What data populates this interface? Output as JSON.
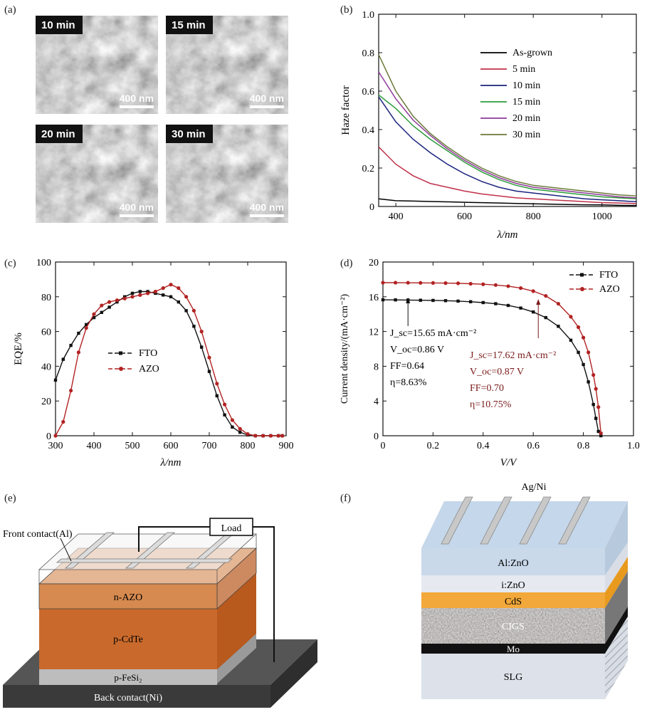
{
  "panels": {
    "a": "(a)",
    "b": "(b)",
    "c": "(c)",
    "d": "(d)",
    "e": "(e)",
    "f": "(f)"
  },
  "sem_images": [
    {
      "time": "10 min",
      "scale": "400 nm"
    },
    {
      "time": "15 min",
      "scale": "400 nm"
    },
    {
      "time": "20 min",
      "scale": "400 nm"
    },
    {
      "time": "30 min",
      "scale": "400 nm"
    }
  ],
  "colors": {
    "as_grown": "#000000",
    "min5": "#c0304a",
    "min10": "#1a237e",
    "min15": "#2e9b3a",
    "min20": "#8e3a99",
    "min30": "#6b7a3a",
    "fto": "#111111",
    "azo": "#b22222",
    "dev_red": "#7a1a1a"
  },
  "chart_data": [
    {
      "panel": "b",
      "type": "line",
      "xlabel": "λ/nm",
      "ylabel": "Haze factor",
      "xlim": [
        350,
        1100
      ],
      "ylim": [
        0,
        1.0
      ],
      "xticks": [
        "400",
        "600",
        "800",
        "1000"
      ],
      "yticks": [
        "0",
        "0.2",
        "0.4",
        "0.6",
        "0.8",
        "1.0"
      ],
      "x": [
        350,
        400,
        450,
        500,
        550,
        600,
        650,
        700,
        750,
        800,
        850,
        900,
        950,
        1000,
        1050,
        1100
      ],
      "series": [
        {
          "name": "As-grown",
          "values": [
            0.04,
            0.03,
            0.028,
            0.026,
            0.024,
            0.022,
            0.02,
            0.018,
            0.016,
            0.014,
            0.012,
            0.01,
            0.009,
            0.008,
            0.006,
            0.005
          ]
        },
        {
          "name": "5 min",
          "values": [
            0.31,
            0.22,
            0.16,
            0.12,
            0.1,
            0.08,
            0.065,
            0.055,
            0.045,
            0.04,
            0.035,
            0.03,
            0.025,
            0.02,
            0.018,
            0.015
          ]
        },
        {
          "name": "10 min",
          "values": [
            0.57,
            0.44,
            0.35,
            0.28,
            0.22,
            0.17,
            0.13,
            0.1,
            0.08,
            0.07,
            0.06,
            0.05,
            0.04,
            0.035,
            0.03,
            0.025
          ]
        },
        {
          "name": "15 min",
          "values": [
            0.58,
            0.51,
            0.42,
            0.35,
            0.29,
            0.23,
            0.18,
            0.14,
            0.11,
            0.09,
            0.08,
            0.07,
            0.06,
            0.05,
            0.045,
            0.04
          ]
        },
        {
          "name": "20 min",
          "values": [
            0.7,
            0.56,
            0.45,
            0.37,
            0.3,
            0.24,
            0.19,
            0.15,
            0.12,
            0.1,
            0.09,
            0.08,
            0.07,
            0.06,
            0.05,
            0.045
          ]
        },
        {
          "name": "30 min",
          "values": [
            0.79,
            0.6,
            0.47,
            0.38,
            0.31,
            0.25,
            0.2,
            0.16,
            0.13,
            0.11,
            0.1,
            0.09,
            0.08,
            0.07,
            0.06,
            0.055
          ]
        }
      ],
      "legend": "right-center"
    },
    {
      "panel": "c",
      "type": "line",
      "xlabel": "λ/nm",
      "ylabel": "EQE/%",
      "xlim": [
        300,
        900
      ],
      "ylim": [
        0,
        100
      ],
      "xticks": [
        "300",
        "400",
        "500",
        "600",
        "700",
        "800",
        "900"
      ],
      "yticks": [
        "0",
        "20",
        "40",
        "60",
        "80",
        "100"
      ],
      "x": [
        300,
        320,
        340,
        360,
        380,
        400,
        420,
        440,
        460,
        480,
        500,
        520,
        540,
        560,
        580,
        600,
        620,
        640,
        660,
        680,
        700,
        720,
        740,
        760,
        780,
        800,
        820,
        840,
        860,
        880,
        890
      ],
      "series": [
        {
          "name": "FTO",
          "values": [
            32,
            44,
            52,
            59,
            64,
            68,
            71,
            74,
            77,
            80,
            82,
            83,
            83,
            82,
            81,
            80,
            77,
            72,
            63,
            51,
            37,
            23,
            12,
            5,
            2,
            0.5,
            0,
            0,
            0,
            0,
            0
          ]
        },
        {
          "name": "AZO",
          "values": [
            0,
            8,
            26,
            48,
            62,
            70,
            75,
            77,
            78,
            79,
            80,
            81,
            82,
            83,
            85,
            87,
            85,
            80,
            72,
            60,
            45,
            30,
            18,
            9,
            4,
            1,
            0,
            0,
            0,
            0,
            0
          ]
        }
      ],
      "legend": "center-left"
    },
    {
      "panel": "d",
      "type": "line",
      "xlabel": "V/V",
      "ylabel": "Current density/(mA·cm⁻²)",
      "xlim": [
        0,
        1.0
      ],
      "ylim": [
        0,
        20
      ],
      "xticks": [
        "0",
        "0.2",
        "0.4",
        "0.6",
        "0.8",
        "1.0"
      ],
      "yticks": [
        "0",
        "4",
        "8",
        "12",
        "16",
        "20"
      ],
      "x": [
        0,
        0.05,
        0.1,
        0.15,
        0.2,
        0.25,
        0.3,
        0.35,
        0.4,
        0.45,
        0.5,
        0.55,
        0.6,
        0.65,
        0.7,
        0.75,
        0.78,
        0.8,
        0.82,
        0.84,
        0.85,
        0.86,
        0.87
      ],
      "series": [
        {
          "name": "FTO",
          "values": [
            15.65,
            15.64,
            15.62,
            15.6,
            15.58,
            15.55,
            15.5,
            15.43,
            15.33,
            15.2,
            15.0,
            14.7,
            14.25,
            13.6,
            12.6,
            11.0,
            9.6,
            8.2,
            6.2,
            3.6,
            2.0,
            0.5,
            0
          ]
        },
        {
          "name": "AZO",
          "values": [
            17.62,
            17.62,
            17.61,
            17.6,
            17.59,
            17.57,
            17.55,
            17.5,
            17.44,
            17.35,
            17.22,
            17.0,
            16.65,
            16.1,
            15.2,
            13.7,
            12.5,
            11.3,
            9.6,
            7.0,
            5.4,
            3.3,
            0.3
          ]
        }
      ],
      "legend": "top-right",
      "annotations": {
        "fto": [
          "J_sc=15.65 mA·cm⁻²",
          "V_oc=0.86 V",
          "FF=0.64",
          "η=8.63%"
        ],
        "azo": [
          "J_sc=17.62 mA·cm⁻²",
          "V_oc=0.87 V",
          "FF=0.70",
          "η=10.75%"
        ]
      }
    }
  ],
  "diagram_e": {
    "front_contact": "Front contact(Al)",
    "load": "Load",
    "layers": [
      "n-AZO",
      "p-CdTe",
      "p-FeSi₂",
      "Back contact(Ni)"
    ]
  },
  "diagram_f": {
    "top": "Ag/Ni",
    "layers": [
      "Al:ZnO",
      "i:ZnO",
      "CdS",
      "CIGS",
      "Mo",
      "SLG"
    ]
  }
}
